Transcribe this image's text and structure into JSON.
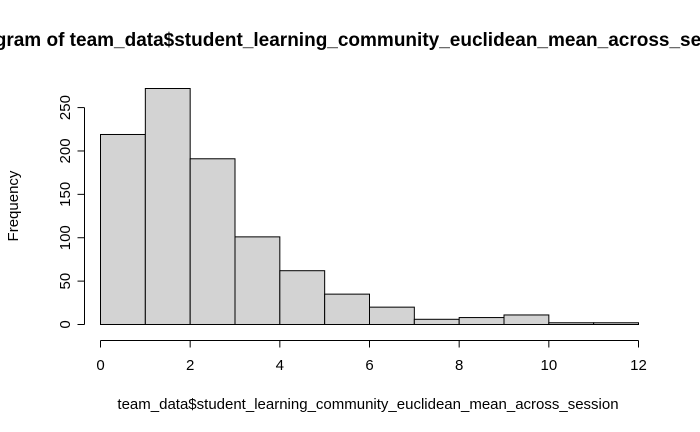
{
  "chart_data": {
    "type": "bar",
    "subtype": "histogram",
    "title": "Histogram of team_data$student_learning_community_euclidean_mean_across_session",
    "xlabel": "team_data$student_learning_community_euclidean_mean_across_session",
    "ylabel": "Frequency",
    "bin_edges": [
      0,
      1,
      2,
      3,
      4,
      5,
      6,
      7,
      8,
      9,
      10,
      11,
      12
    ],
    "values": [
      219,
      272,
      191,
      101,
      62,
      35,
      20,
      6,
      8,
      11,
      2,
      2
    ],
    "xlim": [
      0,
      12
    ],
    "ylim": [
      0,
      272
    ],
    "x_ticks": [
      0,
      2,
      4,
      6,
      8,
      10,
      12
    ],
    "x_tick_labels": [
      "0",
      "2",
      "4",
      "6",
      "8",
      "10",
      "12"
    ],
    "y_ticks": [
      0,
      50,
      100,
      150,
      200,
      250
    ],
    "y_tick_labels": [
      "0",
      "50",
      "100",
      "150",
      "200",
      "250"
    ],
    "bar_fill": "#d3d3d3",
    "bar_stroke": "#000000",
    "grid": false,
    "legend": "none"
  }
}
